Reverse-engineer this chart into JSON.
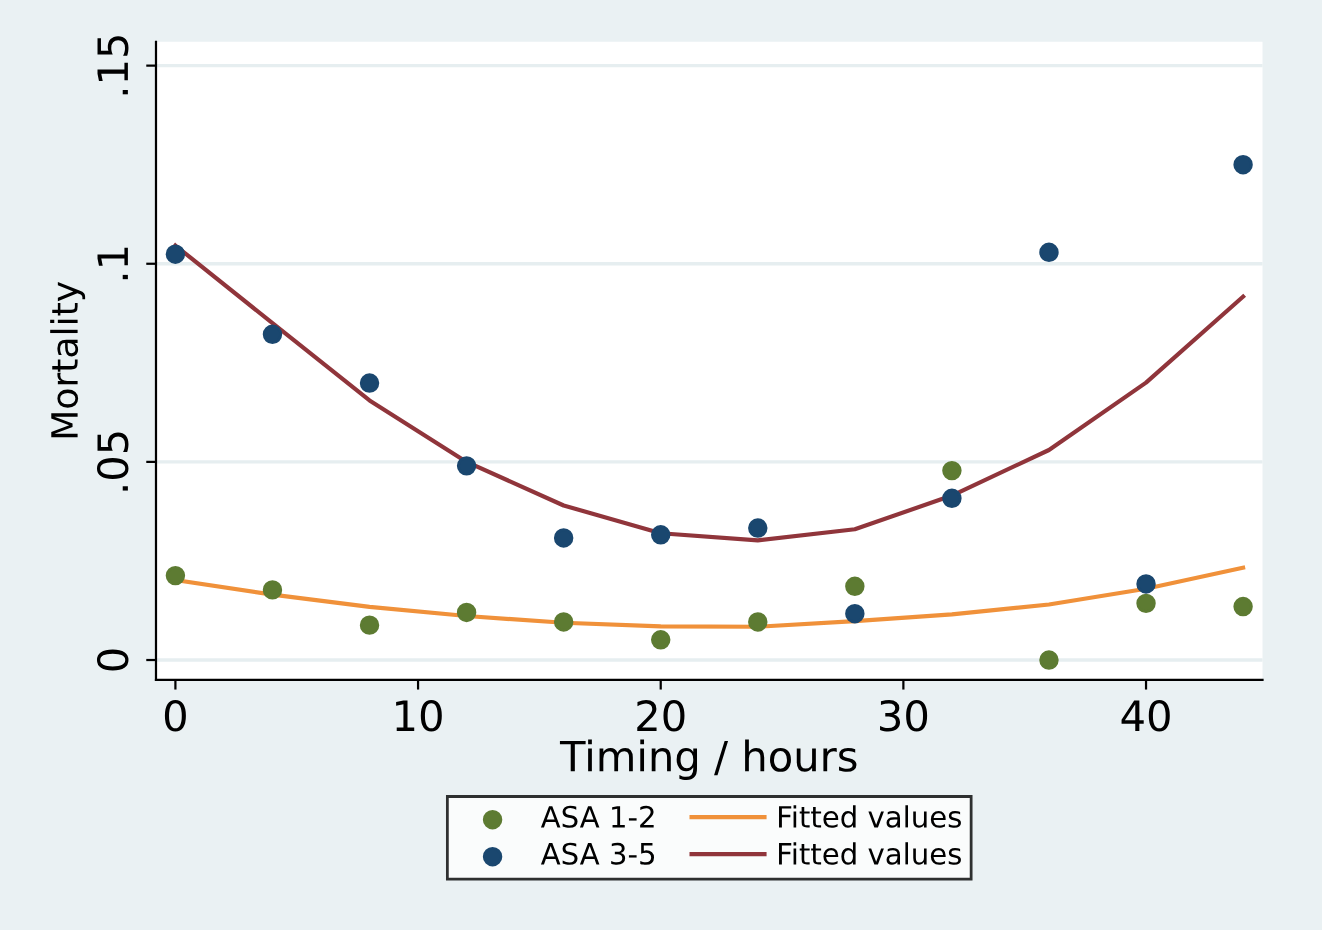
{
  "chart_data": {
    "type": "scatter",
    "xlabel": "Timing / hours",
    "ylabel": "Mortality",
    "xlim": [
      -0.8,
      44.8
    ],
    "ylim": [
      -0.005,
      0.156
    ],
    "xticks": [
      0,
      10,
      20,
      30,
      40
    ],
    "yticks": [
      {
        "value": 0,
        "label": "0"
      },
      {
        "value": 0.05,
        "label": ".05"
      },
      {
        "value": 0.1,
        "label": ".1"
      },
      {
        "value": 0.15,
        "label": ".15"
      }
    ],
    "grid": "y",
    "legend": "bottom",
    "marker": "circle",
    "series": [
      {
        "name": "ASA 1-2",
        "color": "#5d7b32",
        "x": [
          0,
          4,
          8,
          12,
          16,
          20,
          24,
          28,
          32,
          36,
          40,
          44
        ],
        "values": [
          0.0213,
          0.0177,
          0.0088,
          0.012,
          0.0096,
          0.0051,
          0.0096,
          0.0186,
          0.0478,
          0,
          0.0143,
          0.0135
        ]
      },
      {
        "name": "ASA 3-5",
        "color": "#1a476f",
        "x": [
          0,
          4,
          8,
          12,
          16,
          20,
          24,
          28,
          32,
          36,
          40,
          44
        ],
        "values": [
          0.1024,
          0.0822,
          0.0699,
          0.049,
          0.0308,
          0.0316,
          0.0333,
          0.0117,
          0.0408,
          0.1029,
          0.0192,
          0.125
        ]
      },
      {
        "name": "Fitted values",
        "type": "line",
        "marker": "none",
        "line_style": "solid",
        "color": "#f0913a",
        "x": [
          0,
          4,
          8,
          12,
          16,
          20,
          24,
          28,
          32,
          36,
          40,
          44
        ],
        "values": [
          0.0202,
          0.0165,
          0.0134,
          0.0111,
          0.0094,
          0.0085,
          0.0084,
          0.0098,
          0.0115,
          0.014,
          0.018,
          0.0233
        ]
      },
      {
        "name": "Fitted values",
        "type": "line",
        "marker": "none",
        "line_style": "solid",
        "color": "#90353b",
        "x": [
          0,
          4,
          8,
          12,
          16,
          20,
          24,
          28,
          32,
          36,
          40,
          44
        ],
        "values": [
          0.1046,
          0.085,
          0.0655,
          0.05,
          0.039,
          0.032,
          0.0302,
          0.033,
          0.0415,
          0.053,
          0.07,
          0.0917
        ]
      }
    ]
  }
}
